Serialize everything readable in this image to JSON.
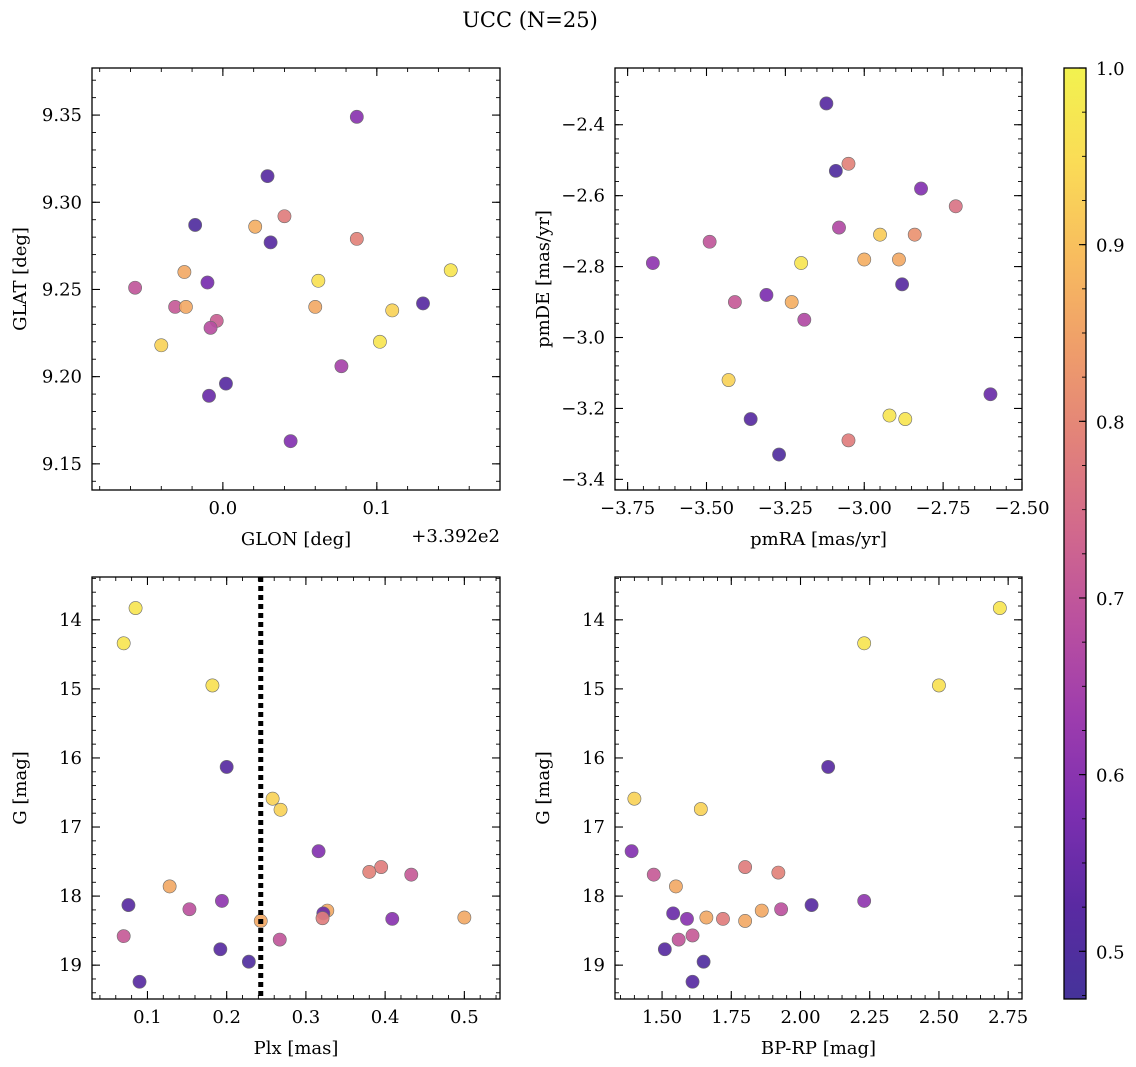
{
  "figure": {
    "title": "UCC (N=25)",
    "colorbar": {
      "min": 0.473,
      "max": 1.0,
      "ticks": [
        0.5,
        0.6,
        0.7,
        0.8,
        0.9,
        1.0
      ],
      "tick_labels": [
        "0.5",
        "0.6",
        "0.7",
        "0.8",
        "0.9",
        "1.0"
      ],
      "colormap": "plasma",
      "colormap_stops": [
        "#45339a",
        "#5a2aa2",
        "#7c2fb0",
        "#9c3cae",
        "#b94fa0",
        "#d1688d",
        "#e2827a",
        "#ef9e6a",
        "#f8bd5e",
        "#fadc56",
        "#f2f24f"
      ]
    }
  },
  "chart_data": [
    {
      "type": "scatter",
      "id": "glon_glat",
      "xlabel": "GLON [deg]",
      "ylabel": "GLAT [deg]",
      "x_offset_label": "+3.392e2",
      "xlim": [
        -0.085,
        0.18
      ],
      "ylim": [
        9.135,
        9.377
      ],
      "xticks": [
        0.0,
        0.1
      ],
      "xtick_labels": [
        "0.0",
        "0.1"
      ],
      "yticks": [
        9.15,
        9.2,
        9.25,
        9.3,
        9.35
      ],
      "ytick_labels": [
        "9.15",
        "9.20",
        "9.25",
        "9.30",
        "9.35"
      ],
      "grid": false,
      "points": [
        {
          "x": 0.087,
          "y": 9.349,
          "c": 0.6
        },
        {
          "x": 0.029,
          "y": 9.315,
          "c": 0.52
        },
        {
          "x": 0.04,
          "y": 9.292,
          "c": 0.78
        },
        {
          "x": 0.021,
          "y": 9.286,
          "c": 0.87
        },
        {
          "x": -0.018,
          "y": 9.287,
          "c": 0.5
        },
        {
          "x": 0.087,
          "y": 9.279,
          "c": 0.79
        },
        {
          "x": 0.031,
          "y": 9.277,
          "c": 0.52
        },
        {
          "x": -0.025,
          "y": 9.26,
          "c": 0.86
        },
        {
          "x": 0.062,
          "y": 9.255,
          "c": 0.96
        },
        {
          "x": -0.01,
          "y": 9.254,
          "c": 0.57
        },
        {
          "x": 0.148,
          "y": 9.261,
          "c": 0.97
        },
        {
          "x": -0.057,
          "y": 9.251,
          "c": 0.7
        },
        {
          "x": -0.031,
          "y": 9.24,
          "c": 0.71
        },
        {
          "x": -0.024,
          "y": 9.24,
          "c": 0.86
        },
        {
          "x": 0.06,
          "y": 9.24,
          "c": 0.86
        },
        {
          "x": 0.11,
          "y": 9.238,
          "c": 0.93
        },
        {
          "x": 0.13,
          "y": 9.242,
          "c": 0.52
        },
        {
          "x": -0.004,
          "y": 9.232,
          "c": 0.72
        },
        {
          "x": -0.008,
          "y": 9.228,
          "c": 0.68
        },
        {
          "x": -0.04,
          "y": 9.218,
          "c": 0.93
        },
        {
          "x": 0.102,
          "y": 9.22,
          "c": 0.97
        },
        {
          "x": 0.077,
          "y": 9.206,
          "c": 0.65
        },
        {
          "x": 0.002,
          "y": 9.196,
          "c": 0.52
        },
        {
          "x": -0.009,
          "y": 9.189,
          "c": 0.55
        },
        {
          "x": 0.044,
          "y": 9.163,
          "c": 0.59
        }
      ]
    },
    {
      "type": "scatter",
      "id": "pmra_pmde",
      "xlabel": "pmRA [mas/yr]",
      "ylabel": "pmDE [mas/yr]",
      "xlim": [
        -3.79,
        -2.5
      ],
      "ylim": [
        -3.43,
        -2.24
      ],
      "xticks": [
        -3.75,
        -3.5,
        -3.25,
        -3.0,
        -2.75,
        -2.5
      ],
      "xtick_labels": [
        "−3.75",
        "−3.50",
        "−3.25",
        "−3.00",
        "−2.75",
        "−2.50"
      ],
      "yticks": [
        -3.4,
        -3.2,
        -3.0,
        -2.8,
        -2.6,
        -2.4
      ],
      "ytick_labels": [
        "−3.4",
        "−3.2",
        "−3.0",
        "−2.8",
        "−2.6",
        "−2.4"
      ],
      "grid": false,
      "points": [
        {
          "x": -3.12,
          "y": -2.34,
          "c": 0.52
        },
        {
          "x": -3.09,
          "y": -2.53,
          "c": 0.5
        },
        {
          "x": -3.05,
          "y": -2.51,
          "c": 0.79
        },
        {
          "x": -2.82,
          "y": -2.58,
          "c": 0.59
        },
        {
          "x": -2.71,
          "y": -2.63,
          "c": 0.76
        },
        {
          "x": -3.08,
          "y": -2.69,
          "c": 0.67
        },
        {
          "x": -3.49,
          "y": -2.73,
          "c": 0.7
        },
        {
          "x": -2.95,
          "y": -2.71,
          "c": 0.92
        },
        {
          "x": -2.84,
          "y": -2.71,
          "c": 0.82
        },
        {
          "x": -3.0,
          "y": -2.78,
          "c": 0.87
        },
        {
          "x": -2.89,
          "y": -2.78,
          "c": 0.86
        },
        {
          "x": -3.2,
          "y": -2.79,
          "c": 0.97
        },
        {
          "x": -3.67,
          "y": -2.79,
          "c": 0.61
        },
        {
          "x": -2.88,
          "y": -2.85,
          "c": 0.52
        },
        {
          "x": -3.41,
          "y": -2.9,
          "c": 0.71
        },
        {
          "x": -3.31,
          "y": -2.88,
          "c": 0.58
        },
        {
          "x": -3.23,
          "y": -2.9,
          "c": 0.87
        },
        {
          "x": -3.19,
          "y": -2.95,
          "c": 0.67
        },
        {
          "x": -3.43,
          "y": -3.12,
          "c": 0.93
        },
        {
          "x": -2.6,
          "y": -3.16,
          "c": 0.55
        },
        {
          "x": -2.92,
          "y": -3.22,
          "c": 0.97
        },
        {
          "x": -2.87,
          "y": -3.23,
          "c": 0.97
        },
        {
          "x": -3.36,
          "y": -3.23,
          "c": 0.52
        },
        {
          "x": -3.05,
          "y": -3.29,
          "c": 0.78
        },
        {
          "x": -3.27,
          "y": -3.33,
          "c": 0.5
        }
      ]
    },
    {
      "type": "scatter",
      "id": "plx_g",
      "xlabel": "Plx [mas]",
      "ylabel": "G [mag]",
      "xlim": [
        0.03,
        0.545
      ],
      "ylim": [
        19.49,
        13.38
      ],
      "xticks": [
        0.1,
        0.2,
        0.3,
        0.4,
        0.5
      ],
      "xtick_labels": [
        "0.1",
        "0.2",
        "0.3",
        "0.4",
        "0.5"
      ],
      "yticks": [
        14,
        15,
        16,
        17,
        18,
        19
      ],
      "ytick_labels": [
        "14",
        "15",
        "16",
        "17",
        "18",
        "19"
      ],
      "grid": false,
      "vline": {
        "x": 0.243,
        "style": "dotted"
      },
      "points": [
        {
          "x": 0.085,
          "y": 13.83,
          "c": 0.97
        },
        {
          "x": 0.07,
          "y": 14.34,
          "c": 0.97
        },
        {
          "x": 0.182,
          "y": 14.95,
          "c": 0.96
        },
        {
          "x": 0.2,
          "y": 16.13,
          "c": 0.52
        },
        {
          "x": 0.258,
          "y": 16.59,
          "c": 0.93
        },
        {
          "x": 0.268,
          "y": 16.75,
          "c": 0.93
        },
        {
          "x": 0.316,
          "y": 17.35,
          "c": 0.59
        },
        {
          "x": 0.395,
          "y": 17.58,
          "c": 0.78
        },
        {
          "x": 0.38,
          "y": 17.65,
          "c": 0.79
        },
        {
          "x": 0.433,
          "y": 17.69,
          "c": 0.71
        },
        {
          "x": 0.128,
          "y": 17.86,
          "c": 0.86
        },
        {
          "x": 0.076,
          "y": 18.13,
          "c": 0.52
        },
        {
          "x": 0.194,
          "y": 18.07,
          "c": 0.61
        },
        {
          "x": 0.153,
          "y": 18.19,
          "c": 0.69
        },
        {
          "x": 0.327,
          "y": 18.21,
          "c": 0.86
        },
        {
          "x": 0.322,
          "y": 18.25,
          "c": 0.55
        },
        {
          "x": 0.321,
          "y": 18.32,
          "c": 0.78
        },
        {
          "x": 0.409,
          "y": 18.33,
          "c": 0.6
        },
        {
          "x": 0.5,
          "y": 18.31,
          "c": 0.86
        },
        {
          "x": 0.243,
          "y": 18.36,
          "c": 0.86
        },
        {
          "x": 0.07,
          "y": 18.58,
          "c": 0.71
        },
        {
          "x": 0.267,
          "y": 18.63,
          "c": 0.7
        },
        {
          "x": 0.192,
          "y": 18.77,
          "c": 0.52
        },
        {
          "x": 0.228,
          "y": 18.95,
          "c": 0.5
        },
        {
          "x": 0.09,
          "y": 19.24,
          "c": 0.52
        }
      ]
    },
    {
      "type": "scatter",
      "id": "bprp_g",
      "xlabel": "BP-RP [mag]",
      "ylabel": "G [mag]",
      "xlim": [
        1.33,
        2.8
      ],
      "ylim": [
        19.49,
        13.38
      ],
      "xticks": [
        1.5,
        1.75,
        2.0,
        2.25,
        2.5,
        2.75
      ],
      "xtick_labels": [
        "1.50",
        "1.75",
        "2.00",
        "2.25",
        "2.50",
        "2.75"
      ],
      "yticks": [
        14,
        15,
        16,
        17,
        18,
        19
      ],
      "ytick_labels": [
        "14",
        "15",
        "16",
        "17",
        "18",
        "19"
      ],
      "grid": false,
      "points": [
        {
          "x": 2.72,
          "y": 13.83,
          "c": 0.97
        },
        {
          "x": 2.23,
          "y": 14.34,
          "c": 0.97
        },
        {
          "x": 2.5,
          "y": 14.95,
          "c": 0.96
        },
        {
          "x": 2.1,
          "y": 16.13,
          "c": 0.52
        },
        {
          "x": 1.4,
          "y": 16.59,
          "c": 0.93
        },
        {
          "x": 1.64,
          "y": 16.74,
          "c": 0.93
        },
        {
          "x": 1.39,
          "y": 17.35,
          "c": 0.59
        },
        {
          "x": 1.8,
          "y": 17.58,
          "c": 0.78
        },
        {
          "x": 1.92,
          "y": 17.66,
          "c": 0.79
        },
        {
          "x": 1.47,
          "y": 17.69,
          "c": 0.71
        },
        {
          "x": 1.55,
          "y": 17.86,
          "c": 0.86
        },
        {
          "x": 2.23,
          "y": 18.07,
          "c": 0.61
        },
        {
          "x": 2.04,
          "y": 18.13,
          "c": 0.52
        },
        {
          "x": 1.93,
          "y": 18.19,
          "c": 0.69
        },
        {
          "x": 1.86,
          "y": 18.21,
          "c": 0.86
        },
        {
          "x": 1.54,
          "y": 18.25,
          "c": 0.55
        },
        {
          "x": 1.66,
          "y": 18.31,
          "c": 0.86
        },
        {
          "x": 1.72,
          "y": 18.33,
          "c": 0.78
        },
        {
          "x": 1.59,
          "y": 18.33,
          "c": 0.6
        },
        {
          "x": 1.8,
          "y": 18.36,
          "c": 0.86
        },
        {
          "x": 1.61,
          "y": 18.57,
          "c": 0.71
        },
        {
          "x": 1.56,
          "y": 18.63,
          "c": 0.7
        },
        {
          "x": 1.51,
          "y": 18.77,
          "c": 0.52
        },
        {
          "x": 1.65,
          "y": 18.95,
          "c": 0.5
        },
        {
          "x": 1.61,
          "y": 19.24,
          "c": 0.52
        }
      ]
    }
  ]
}
